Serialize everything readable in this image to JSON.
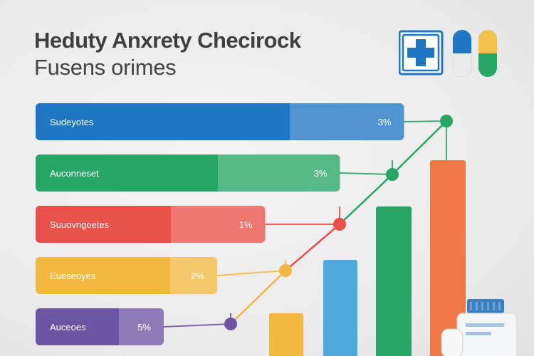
{
  "title": "Heduty Anxrety Checirock",
  "subtitle": "Fusens orimes",
  "icons": [
    "medical-cross-icon",
    "capsule-blue-icon",
    "capsule-yellow-green-icon",
    "pill-bottle-icon"
  ],
  "colors": {
    "blue": "#1f77c4",
    "green": "#27a564",
    "red": "#e8524a",
    "yellow": "#f2b941",
    "purple": "#6d55a3",
    "orange": "#f07846"
  },
  "chart_data": {
    "type": "bar",
    "title": "Heduty Anxrety Checirock",
    "subtitle": "Fusens orimes",
    "orientation": "horizontal",
    "categories": [
      "Sudeyotes",
      "Auconneset",
      "Suuovngoetes",
      "Eueseoyes",
      "Auceoes"
    ],
    "value_labels": [
      "3%",
      "3%",
      "1%",
      "2%",
      "5%"
    ],
    "values": [
      0.69,
      0.57,
      0.43,
      0.34,
      0.24
    ],
    "split_fraction": [
      0.69,
      0.6,
      0.59,
      0.74,
      0.65
    ],
    "bar_colors": [
      "#1f77c4",
      "#27a564",
      "#e8524a",
      "#f2b941",
      "#6d55a3"
    ],
    "vertical_bars": {
      "values": [
        0.12,
        0.27,
        0.42,
        0.55
      ],
      "colors": [
        "#f2b941",
        "#4fa9dc",
        "#27a564",
        "#f07846"
      ]
    },
    "trend_line": {
      "points": [
        0.09,
        0.24,
        0.37,
        0.51,
        0.66
      ],
      "colors": [
        "#6d55a3",
        "#f2b941",
        "#e8524a",
        "#27a564",
        "#27a564"
      ]
    },
    "grid": false,
    "legend": "none"
  }
}
